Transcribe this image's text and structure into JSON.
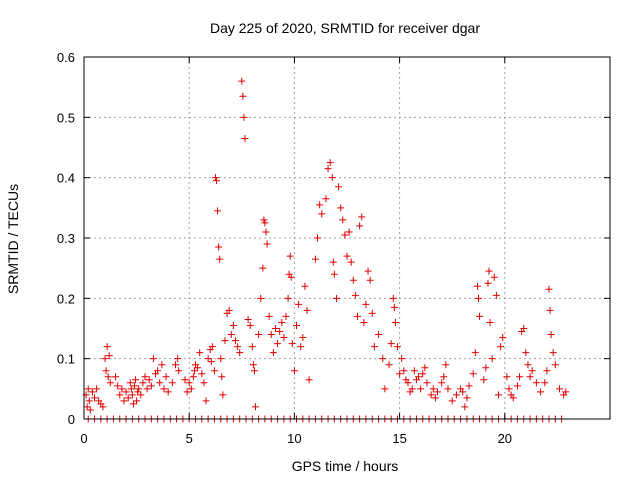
{
  "chart_data": {
    "type": "scatter",
    "title": "Day 225 of 2020, SRMTID for receiver dgar",
    "xlabel": "GPS time / hours",
    "ylabel": "SRMTID / TECUs",
    "xlim": [
      0,
      25
    ],
    "ylim": [
      0,
      0.6
    ],
    "x_ticks": [
      0,
      5,
      10,
      15,
      20
    ],
    "x_tick_labels": [
      "0",
      "5",
      "10",
      "15",
      "20"
    ],
    "y_ticks": [
      0,
      0.1,
      0.2,
      0.3,
      0.4,
      0.5,
      0.6
    ],
    "y_tick_labels": [
      "0",
      "0.1",
      "0.2",
      "0.3",
      "0.4",
      "0.5",
      "0.6"
    ],
    "grid": true,
    "marker": "+",
    "color": "#e00000",
    "series": [
      {
        "name": "SRMTID",
        "points": [
          [
            0.1,
            0.04
          ],
          [
            0.15,
            0.02
          ],
          [
            0.2,
            0.05
          ],
          [
            0.25,
            0.03
          ],
          [
            0.3,
            0.015
          ],
          [
            0.4,
            0.045
          ],
          [
            0.5,
            0.035
          ],
          [
            0.6,
            0.05
          ],
          [
            0.7,
            0.03
          ],
          [
            0.8,
            0.025
          ],
          [
            0.9,
            0.02
          ],
          [
            1.0,
            0.1
          ],
          [
            1.05,
            0.08
          ],
          [
            1.1,
            0.12
          ],
          [
            1.15,
            0.07
          ],
          [
            1.2,
            0.105
          ],
          [
            1.25,
            0.06
          ],
          [
            1.5,
            0.07
          ],
          [
            1.6,
            0.055
          ],
          [
            1.7,
            0.04
          ],
          [
            1.8,
            0.05
          ],
          [
            1.9,
            0.03
          ],
          [
            2.0,
            0.045
          ],
          [
            2.1,
            0.035
          ],
          [
            2.2,
            0.06
          ],
          [
            2.25,
            0.05
          ],
          [
            2.3,
            0.04
          ],
          [
            2.35,
            0.025
          ],
          [
            2.4,
            0.055
          ],
          [
            2.45,
            0.065
          ],
          [
            2.5,
            0.03
          ],
          [
            2.55,
            0.045
          ],
          [
            2.6,
            0.05
          ],
          [
            2.7,
            0.04
          ],
          [
            2.8,
            0.06
          ],
          [
            2.9,
            0.07
          ],
          [
            3.0,
            0.05
          ],
          [
            3.1,
            0.065
          ],
          [
            3.2,
            0.055
          ],
          [
            3.3,
            0.1
          ],
          [
            3.4,
            0.075
          ],
          [
            3.5,
            0.08
          ],
          [
            3.6,
            0.06
          ],
          [
            3.7,
            0.09
          ],
          [
            3.8,
            0.05
          ],
          [
            3.9,
            0.07
          ],
          [
            4.0,
            0.045
          ],
          [
            4.2,
            0.06
          ],
          [
            4.35,
            0.09
          ],
          [
            4.45,
            0.1
          ],
          [
            4.5,
            0.08
          ],
          [
            4.8,
            0.065
          ],
          [
            4.9,
            0.045
          ],
          [
            5.0,
            0.06
          ],
          [
            5.1,
            0.05
          ],
          [
            5.2,
            0.07
          ],
          [
            5.25,
            0.08
          ],
          [
            5.3,
            0.09
          ],
          [
            5.4,
            0.085
          ],
          [
            5.5,
            0.11
          ],
          [
            5.6,
            0.075
          ],
          [
            5.7,
            0.06
          ],
          [
            5.8,
            0.03
          ],
          [
            5.9,
            0.1
          ],
          [
            6.0,
            0.115
          ],
          [
            6.05,
            0.095
          ],
          [
            6.1,
            0.12
          ],
          [
            6.2,
            0.08
          ],
          [
            6.25,
            0.4
          ],
          [
            6.3,
            0.395
          ],
          [
            6.35,
            0.345
          ],
          [
            6.4,
            0.285
          ],
          [
            6.45,
            0.265
          ],
          [
            6.5,
            0.1
          ],
          [
            6.55,
            0.07
          ],
          [
            6.6,
            0.04
          ],
          [
            6.7,
            0.13
          ],
          [
            6.8,
            0.175
          ],
          [
            6.9,
            0.18
          ],
          [
            7.0,
            0.14
          ],
          [
            7.1,
            0.155
          ],
          [
            7.2,
            0.13
          ],
          [
            7.3,
            0.12
          ],
          [
            7.4,
            0.11
          ],
          [
            7.5,
            0.56
          ],
          [
            7.55,
            0.535
          ],
          [
            7.6,
            0.5
          ],
          [
            7.65,
            0.465
          ],
          [
            7.8,
            0.165
          ],
          [
            7.9,
            0.155
          ],
          [
            8.0,
            0.12
          ],
          [
            8.05,
            0.09
          ],
          [
            8.1,
            0.08
          ],
          [
            8.15,
            0.02
          ],
          [
            8.3,
            0.14
          ],
          [
            8.4,
            0.2
          ],
          [
            8.5,
            0.25
          ],
          [
            8.55,
            0.33
          ],
          [
            8.6,
            0.325
          ],
          [
            8.65,
            0.31
          ],
          [
            8.7,
            0.29
          ],
          [
            8.8,
            0.17
          ],
          [
            8.9,
            0.14
          ],
          [
            9.0,
            0.11
          ],
          [
            9.1,
            0.15
          ],
          [
            9.2,
            0.125
          ],
          [
            9.3,
            0.145
          ],
          [
            9.4,
            0.16
          ],
          [
            9.5,
            0.135
          ],
          [
            9.6,
            0.17
          ],
          [
            9.7,
            0.2
          ],
          [
            9.75,
            0.24
          ],
          [
            9.8,
            0.27
          ],
          [
            9.85,
            0.235
          ],
          [
            9.9,
            0.125
          ],
          [
            10.0,
            0.08
          ],
          [
            10.1,
            0.155
          ],
          [
            10.2,
            0.19
          ],
          [
            10.3,
            0.12
          ],
          [
            10.4,
            0.135
          ],
          [
            10.5,
            0.22
          ],
          [
            10.6,
            0.18
          ],
          [
            10.7,
            0.065
          ],
          [
            11.0,
            0.265
          ],
          [
            11.1,
            0.3
          ],
          [
            11.2,
            0.355
          ],
          [
            11.3,
            0.34
          ],
          [
            11.5,
            0.365
          ],
          [
            11.6,
            0.415
          ],
          [
            11.7,
            0.425
          ],
          [
            11.8,
            0.4
          ],
          [
            11.85,
            0.26
          ],
          [
            11.9,
            0.24
          ],
          [
            12.0,
            0.2
          ],
          [
            12.1,
            0.385
          ],
          [
            12.2,
            0.35
          ],
          [
            12.3,
            0.33
          ],
          [
            12.4,
            0.305
          ],
          [
            12.5,
            0.27
          ],
          [
            12.6,
            0.31
          ],
          [
            12.7,
            0.26
          ],
          [
            12.8,
            0.23
          ],
          [
            12.9,
            0.205
          ],
          [
            13.0,
            0.17
          ],
          [
            13.1,
            0.32
          ],
          [
            13.2,
            0.335
          ],
          [
            13.3,
            0.16
          ],
          [
            13.4,
            0.19
          ],
          [
            13.5,
            0.245
          ],
          [
            13.6,
            0.23
          ],
          [
            13.7,
            0.175
          ],
          [
            13.8,
            0.12
          ],
          [
            14.0,
            0.14
          ],
          [
            14.2,
            0.1
          ],
          [
            14.3,
            0.05
          ],
          [
            14.5,
            0.09
          ],
          [
            14.6,
            0.125
          ],
          [
            14.7,
            0.2
          ],
          [
            14.75,
            0.185
          ],
          [
            14.8,
            0.16
          ],
          [
            14.9,
            0.12
          ],
          [
            15.0,
            0.075
          ],
          [
            15.1,
            0.1
          ],
          [
            15.2,
            0.08
          ],
          [
            15.3,
            0.065
          ],
          [
            15.4,
            0.06
          ],
          [
            15.5,
            0.045
          ],
          [
            15.6,
            0.05
          ],
          [
            15.7,
            0.08
          ],
          [
            15.8,
            0.065
          ],
          [
            15.9,
            0.07
          ],
          [
            16.0,
            0.05
          ],
          [
            16.1,
            0.075
          ],
          [
            16.2,
            0.085
          ],
          [
            16.3,
            0.06
          ],
          [
            16.5,
            0.04
          ],
          [
            16.6,
            0.05
          ],
          [
            16.7,
            0.035
          ],
          [
            16.8,
            0.045
          ],
          [
            17.0,
            0.06
          ],
          [
            17.1,
            0.07
          ],
          [
            17.2,
            0.09
          ],
          [
            17.3,
            0.05
          ],
          [
            17.5,
            0.03
          ],
          [
            17.7,
            0.04
          ],
          [
            17.9,
            0.05
          ],
          [
            18.0,
            0.045
          ],
          [
            18.1,
            0.02
          ],
          [
            18.2,
            0.035
          ],
          [
            18.3,
            0.055
          ],
          [
            18.5,
            0.075
          ],
          [
            18.6,
            0.11
          ],
          [
            18.7,
            0.22
          ],
          [
            18.75,
            0.2
          ],
          [
            18.8,
            0.17
          ],
          [
            19.0,
            0.065
          ],
          [
            19.1,
            0.085
          ],
          [
            19.2,
            0.225
          ],
          [
            19.25,
            0.245
          ],
          [
            19.3,
            0.16
          ],
          [
            19.4,
            0.1
          ],
          [
            19.5,
            0.235
          ],
          [
            19.6,
            0.205
          ],
          [
            19.7,
            0.04
          ],
          [
            19.8,
            0.12
          ],
          [
            19.9,
            0.135
          ],
          [
            20.1,
            0.07
          ],
          [
            20.2,
            0.05
          ],
          [
            20.3,
            0.04
          ],
          [
            20.4,
            0.035
          ],
          [
            20.6,
            0.055
          ],
          [
            20.7,
            0.07
          ],
          [
            20.8,
            0.145
          ],
          [
            20.9,
            0.15
          ],
          [
            21.0,
            0.11
          ],
          [
            21.1,
            0.09
          ],
          [
            21.2,
            0.07
          ],
          [
            21.3,
            0.08
          ],
          [
            21.5,
            0.06
          ],
          [
            21.7,
            0.045
          ],
          [
            21.9,
            0.06
          ],
          [
            22.0,
            0.08
          ],
          [
            22.1,
            0.215
          ],
          [
            22.15,
            0.18
          ],
          [
            22.2,
            0.14
          ],
          [
            22.3,
            0.11
          ],
          [
            22.4,
            0.09
          ],
          [
            22.6,
            0.05
          ],
          [
            22.8,
            0.04
          ],
          [
            22.9,
            0.045
          ],
          [
            0.2,
            0
          ],
          [
            0.5,
            0
          ],
          [
            0.8,
            0
          ],
          [
            1.1,
            0
          ],
          [
            1.4,
            0
          ],
          [
            1.7,
            0
          ],
          [
            2.0,
            0
          ],
          [
            2.3,
            0
          ],
          [
            2.6,
            0
          ],
          [
            2.9,
            0
          ],
          [
            3.2,
            0
          ],
          [
            3.5,
            0
          ],
          [
            3.8,
            0
          ],
          [
            4.1,
            0
          ],
          [
            4.4,
            0
          ],
          [
            4.7,
            0
          ],
          [
            5.0,
            0
          ],
          [
            5.3,
            0
          ],
          [
            5.6,
            0
          ],
          [
            5.9,
            0
          ],
          [
            6.2,
            0
          ],
          [
            6.5,
            0
          ],
          [
            6.8,
            0
          ],
          [
            7.1,
            0
          ],
          [
            7.4,
            0
          ],
          [
            7.7,
            0
          ],
          [
            8.0,
            0
          ],
          [
            8.3,
            0
          ],
          [
            8.6,
            0
          ],
          [
            8.9,
            0
          ],
          [
            9.2,
            0
          ],
          [
            9.5,
            0
          ],
          [
            9.8,
            0
          ],
          [
            10.1,
            0
          ],
          [
            10.4,
            0
          ],
          [
            10.7,
            0
          ],
          [
            11.0,
            0
          ],
          [
            11.3,
            0
          ],
          [
            11.6,
            0
          ],
          [
            11.9,
            0
          ],
          [
            12.2,
            0
          ],
          [
            12.5,
            0
          ],
          [
            12.8,
            0
          ],
          [
            13.1,
            0
          ],
          [
            13.4,
            0
          ],
          [
            13.7,
            0
          ],
          [
            14.0,
            0
          ],
          [
            14.3,
            0
          ],
          [
            14.6,
            0
          ],
          [
            14.9,
            0
          ],
          [
            15.2,
            0
          ],
          [
            15.5,
            0
          ],
          [
            15.8,
            0
          ],
          [
            16.1,
            0
          ],
          [
            16.4,
            0
          ],
          [
            16.7,
            0
          ],
          [
            17.0,
            0
          ],
          [
            17.3,
            0
          ],
          [
            17.6,
            0
          ],
          [
            17.9,
            0
          ],
          [
            18.2,
            0
          ],
          [
            18.5,
            0
          ],
          [
            18.8,
            0
          ],
          [
            19.1,
            0
          ],
          [
            19.4,
            0
          ],
          [
            19.7,
            0
          ],
          [
            20.0,
            0
          ],
          [
            20.3,
            0
          ],
          [
            20.6,
            0
          ],
          [
            20.9,
            0
          ],
          [
            21.2,
            0
          ],
          [
            21.5,
            0
          ],
          [
            21.8,
            0
          ],
          [
            22.1,
            0
          ],
          [
            22.4,
            0
          ],
          [
            22.7,
            0
          ]
        ]
      }
    ]
  }
}
